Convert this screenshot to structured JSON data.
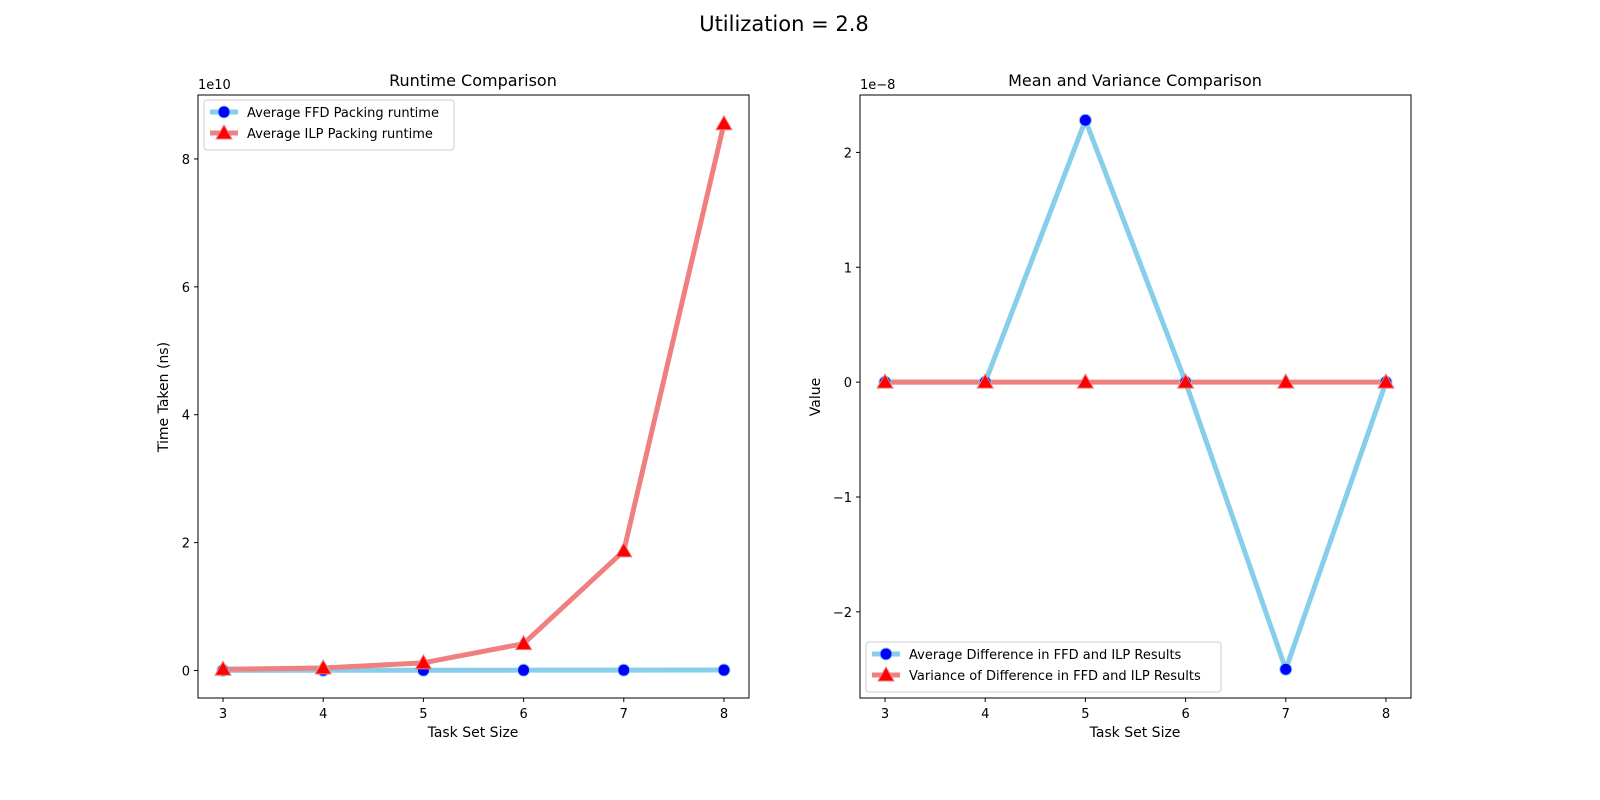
{
  "suptitle": "Utilization = 2.8",
  "chart_data": [
    {
      "type": "line",
      "title": "Runtime Comparison",
      "xlabel": "Task Set Size",
      "ylabel": "Time Taken (ns)",
      "offset_text": "1e10",
      "x": [
        3,
        4,
        5,
        6,
        7,
        8
      ],
      "xlim": [
        2.75,
        8.25
      ],
      "ylim": [
        -0.43,
        9.0
      ],
      "y_scale_exponent": 10,
      "xticks": [
        "3",
        "4",
        "5",
        "6",
        "7",
        "8"
      ],
      "yticks": [
        "0",
        "2",
        "4",
        "6",
        "8"
      ],
      "ytick_values": [
        0,
        2,
        4,
        6,
        8
      ],
      "legend_position": "upper left",
      "series": [
        {
          "name": "Average FFD Packing runtime",
          "color": "#87ceeb",
          "marker_color": "#0000ff",
          "marker": "circle",
          "values": [
            0.002,
            0.003,
            0.004,
            0.005,
            0.006,
            0.007
          ]
        },
        {
          "name": "Average ILP Packing runtime",
          "color": "#f08080",
          "marker_color": "#ff0000",
          "marker": "triangle",
          "values": [
            0.02,
            0.04,
            0.12,
            0.42,
            1.87,
            8.55
          ]
        }
      ]
    },
    {
      "type": "line",
      "title": "Mean and Variance Comparison",
      "xlabel": "Task Set Size",
      "ylabel": "Value",
      "offset_text": "1e−8",
      "x": [
        3,
        4,
        5,
        6,
        7,
        8
      ],
      "xlim": [
        2.75,
        8.25
      ],
      "ylim": [
        -2.75,
        2.5
      ],
      "y_scale_exponent": -8,
      "xticks": [
        "3",
        "4",
        "5",
        "6",
        "7",
        "8"
      ],
      "yticks": [
        "−2",
        "−1",
        "0",
        "1",
        "2"
      ],
      "ytick_values": [
        -2,
        -1,
        0,
        1,
        2
      ],
      "legend_position": "lower left",
      "series": [
        {
          "name": "Average Difference in FFD and ILP Results",
          "color": "#87ceeb",
          "marker_color": "#0000ff",
          "marker": "circle",
          "values": [
            0,
            0,
            2.28,
            0,
            -2.5,
            0
          ]
        },
        {
          "name": "Variance of Difference in FFD and ILP Results",
          "color": "#f08080",
          "marker_color": "#ff0000",
          "marker": "triangle",
          "values": [
            0,
            0,
            0,
            0,
            0,
            0
          ]
        }
      ]
    }
  ]
}
